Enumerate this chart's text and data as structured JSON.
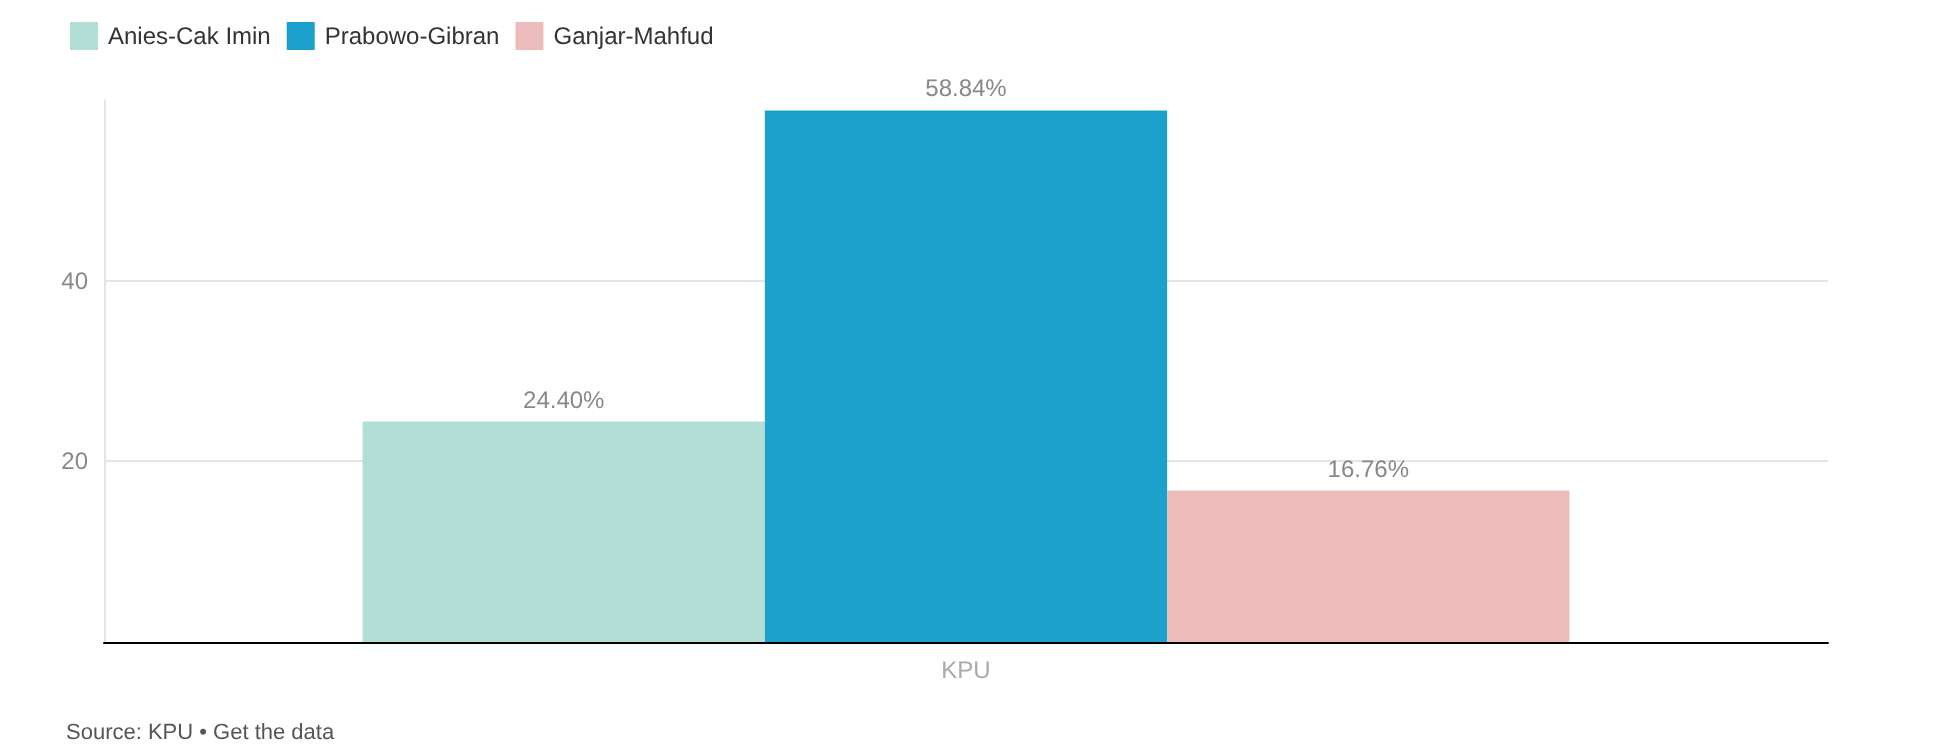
{
  "chart_data": {
    "type": "bar",
    "categories": [
      "KPU"
    ],
    "series": [
      {
        "name": "Anies-Cak Imin",
        "color": "#b3ded5",
        "values": [
          24.4
        ],
        "value_labels": [
          "24.40%"
        ]
      },
      {
        "name": "Prabowo-Gibran",
        "color": "#1ba1cc",
        "values": [
          58.84
        ],
        "value_labels": [
          "58.84%"
        ]
      },
      {
        "name": "Ganjar-Mahfud",
        "color": "#ecbbbb",
        "values": [
          16.76
        ],
        "value_labels": [
          "16.76%"
        ]
      }
    ],
    "ylim": [
      0,
      60
    ],
    "yticks": [
      20,
      40
    ],
    "grid": "y",
    "legend": "top left",
    "annotations": [
      "Source: KPU • Get the data"
    ]
  }
}
